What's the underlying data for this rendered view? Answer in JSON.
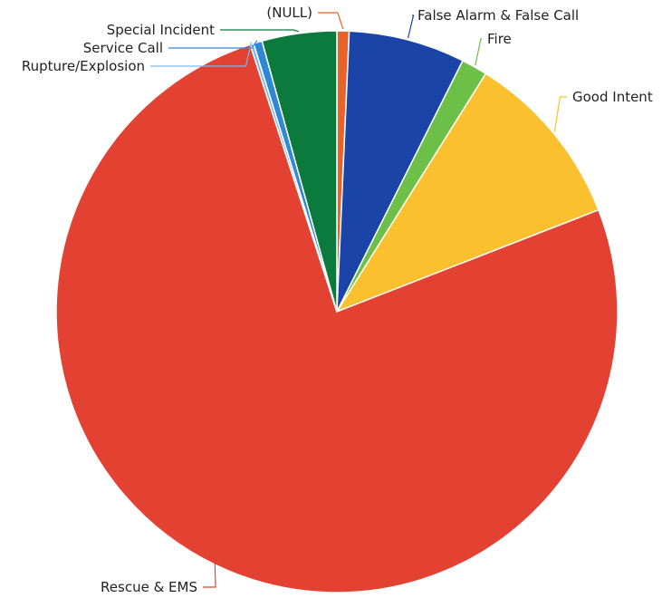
{
  "chart_data": {
    "type": "pie",
    "title": "",
    "slices": [
      {
        "label": "(NULL)",
        "value": 0.7,
        "color": "#e8622c"
      },
      {
        "label": "False Alarm & False Call",
        "value": 6.7,
        "color": "#1a44a8"
      },
      {
        "label": "Fire",
        "value": 1.5,
        "color": "#6cbf47"
      },
      {
        "label": "Good Intent",
        "value": 10.2,
        "color": "#fbc02d"
      },
      {
        "label": "Rescue & EMS",
        "value": 75.9,
        "color": "#e34232"
      },
      {
        "label": "Rupture/Explosion",
        "value": 0.2,
        "color": "#7fb6e6"
      },
      {
        "label": "Service Call",
        "value": 0.5,
        "color": "#2f88d6"
      },
      {
        "label": "Special Incident",
        "value": 4.3,
        "color": "#0c7a3c"
      }
    ],
    "legend": "labels on leader lines"
  }
}
